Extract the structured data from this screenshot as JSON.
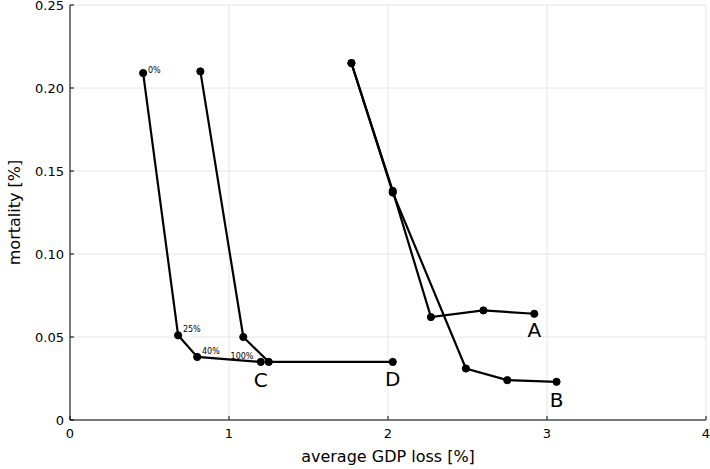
{
  "chart_data": {
    "type": "line",
    "x_label": "average GDP loss [%]",
    "y_label": "mortality [%]",
    "xlim": [
      0,
      4
    ],
    "xticks": [
      0,
      1,
      2,
      3,
      4
    ],
    "ylim": [
      0,
      0.25
    ],
    "yticks": [
      0,
      0.05,
      {
        "value": 0.1,
        "label": "0.10"
      },
      0.15,
      {
        "value": 0.2,
        "label": "0.20"
      },
      0.25
    ],
    "grid": true,
    "marker": "circle",
    "color": "#000000",
    "series": [
      {
        "x": [
          0.46,
          0.68,
          0.8,
          1.2
        ],
        "values": [
          0.209,
          0.051,
          0.038,
          0.035
        ]
      },
      {
        "x": [
          0.82,
          1.09,
          1.25,
          2.03
        ],
        "values": [
          0.21,
          0.05,
          0.035,
          0.035
        ]
      },
      {
        "x": [
          1.77,
          2.03,
          2.27,
          2.6,
          2.92
        ],
        "values": [
          0.215,
          0.138,
          0.062,
          0.066,
          0.064
        ]
      },
      {
        "x": [
          1.77,
          2.03,
          2.49,
          2.75,
          3.06
        ],
        "values": [
          0.215,
          0.137,
          0.031,
          0.024,
          0.023
        ]
      }
    ],
    "annotations": [
      {
        "text": "0%",
        "x": 0.49,
        "y": 0.209
      },
      {
        "text": "25%",
        "x": 0.71,
        "y": 0.053
      },
      {
        "text": "40%",
        "x": 0.83,
        "y": 0.04
      },
      {
        "text": "100%",
        "x": 1.01,
        "y": 0.037
      },
      {
        "text": "A",
        "x": 2.92,
        "y": 0.057
      },
      {
        "text": "B",
        "x": 3.06,
        "y": 0.015
      },
      {
        "text": "C",
        "x": 1.2,
        "y": 0.027
      },
      {
        "text": "D",
        "x": 2.03,
        "y": 0.028
      }
    ]
  }
}
